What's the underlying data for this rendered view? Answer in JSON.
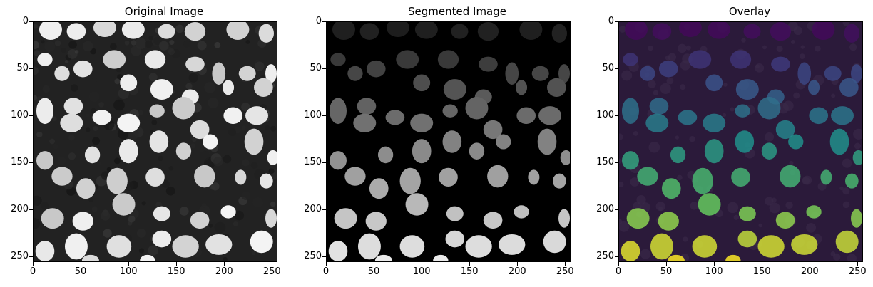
{
  "panels": [
    {
      "title": "Original Image",
      "style": "grayscale"
    },
    {
      "title": "Segmented Image",
      "style": "labels-gray"
    },
    {
      "title": "Overlay",
      "style": "viridis-overlay"
    }
  ],
  "axes": {
    "xticks": [
      "0",
      "50",
      "100",
      "150",
      "200",
      "250"
    ],
    "yticks": [
      "0",
      "50",
      "100",
      "150",
      "200",
      "250"
    ],
    "xlim": [
      0,
      255
    ],
    "ylim": [
      0,
      255
    ]
  },
  "colors": {
    "background_dark": "#111111",
    "segment_background": "#000000",
    "overlay_background": "#2b1a3a",
    "viridis": [
      "#440154",
      "#3b528b",
      "#21918c",
      "#5ec962",
      "#fde725"
    ]
  }
}
